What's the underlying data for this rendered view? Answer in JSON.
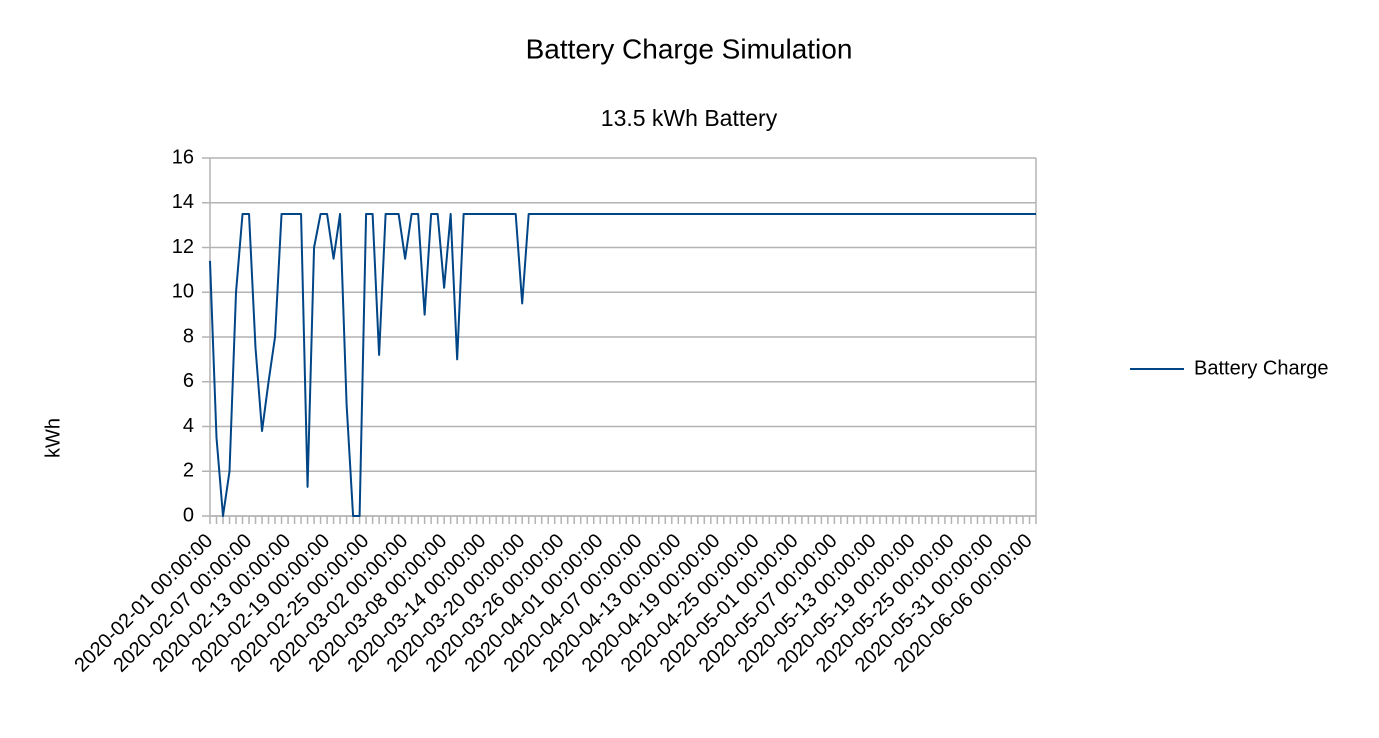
{
  "chart_data": {
    "type": "line",
    "title": "Battery Charge Simulation",
    "subtitle": "13.5 kWh Battery",
    "y_label": "kWh",
    "categories": [
      "2020-02-01 00:00:00",
      null,
      null,
      null,
      null,
      null,
      "2020-02-07 00:00:00",
      null,
      null,
      null,
      null,
      null,
      "2020-02-13 00:00:00",
      null,
      null,
      null,
      null,
      null,
      "2020-02-19 00:00:00",
      null,
      null,
      null,
      null,
      null,
      "2020-02-25 00:00:00",
      null,
      null,
      null,
      null,
      null,
      "2020-03-02 00:00:00",
      null,
      null,
      null,
      null,
      null,
      "2020-03-08 00:00:00",
      null,
      null,
      null,
      null,
      null,
      "2020-03-14 00:00:00",
      null,
      null,
      null,
      null,
      null,
      "2020-03-20 00:00:00",
      null,
      null,
      null,
      null,
      null,
      "2020-03-26 00:00:00",
      null,
      null,
      null,
      null,
      null,
      "2020-04-01 00:00:00",
      null,
      null,
      null,
      null,
      null,
      "2020-04-07 00:00:00",
      null,
      null,
      null,
      null,
      null,
      "2020-04-13 00:00:00",
      null,
      null,
      null,
      null,
      null,
      "2020-04-19 00:00:00",
      null,
      null,
      null,
      null,
      null,
      "2020-04-25 00:00:00",
      null,
      null,
      null,
      null,
      null,
      "2020-05-01 00:00:00",
      null,
      null,
      null,
      null,
      null,
      "2020-05-07 00:00:00",
      null,
      null,
      null,
      null,
      null,
      "2020-05-13 00:00:00",
      null,
      null,
      null,
      null,
      null,
      "2020-05-19 00:00:00",
      null,
      null,
      null,
      null,
      null,
      "2020-05-25 00:00:00",
      null,
      null,
      null,
      null,
      null,
      "2020-05-31 00:00:00",
      null,
      null,
      null,
      null,
      null,
      "2020-06-06 00:00:00",
      null
    ],
    "series": [
      {
        "name": "Battery Charge",
        "color": "#004586",
        "values": [
          11.4,
          3.5,
          0,
          2,
          10,
          13.5,
          13.5,
          7.5,
          3.8,
          6,
          8,
          13.5,
          13.5,
          13.5,
          13.5,
          1.3,
          12,
          13.5,
          13.5,
          11.5,
          13.5,
          5,
          0,
          0,
          13.5,
          13.5,
          7.2,
          13.5,
          13.5,
          13.5,
          11.5,
          13.5,
          13.5,
          9,
          13.5,
          13.5,
          10.2,
          13.5,
          7,
          13.5,
          13.5,
          13.5,
          13.5,
          13.5,
          13.5,
          13.5,
          13.5,
          13.5,
          9.5,
          13.5,
          13.5,
          13.5,
          13.5,
          13.5,
          13.5,
          13.5,
          13.5,
          13.5,
          13.5,
          13.5,
          13.5,
          13.5,
          13.5,
          13.5,
          13.5,
          13.5,
          13.5,
          13.5,
          13.5,
          13.5,
          13.5,
          13.5,
          13.5,
          13.5,
          13.5,
          13.5,
          13.5,
          13.5,
          13.5,
          13.5,
          13.5,
          13.5,
          13.5,
          13.5,
          13.5,
          13.5,
          13.5,
          13.5,
          13.5,
          13.5,
          13.5,
          13.5,
          13.5,
          13.5,
          13.5,
          13.5,
          13.5,
          13.5,
          13.5,
          13.5,
          13.5,
          13.5,
          13.5,
          13.5,
          13.5,
          13.5,
          13.5,
          13.5,
          13.5,
          13.5,
          13.5,
          13.5,
          13.5,
          13.5,
          13.5,
          13.5,
          13.5,
          13.5,
          13.5,
          13.5,
          13.5,
          13.5,
          13.5,
          13.5,
          13.5,
          13.5,
          13.5,
          13.5
        ]
      }
    ],
    "ylim": [
      0,
      16
    ],
    "yticks": [
      0,
      2,
      4,
      6,
      8,
      10,
      12,
      14,
      16
    ],
    "grid": true,
    "legend": "right"
  }
}
